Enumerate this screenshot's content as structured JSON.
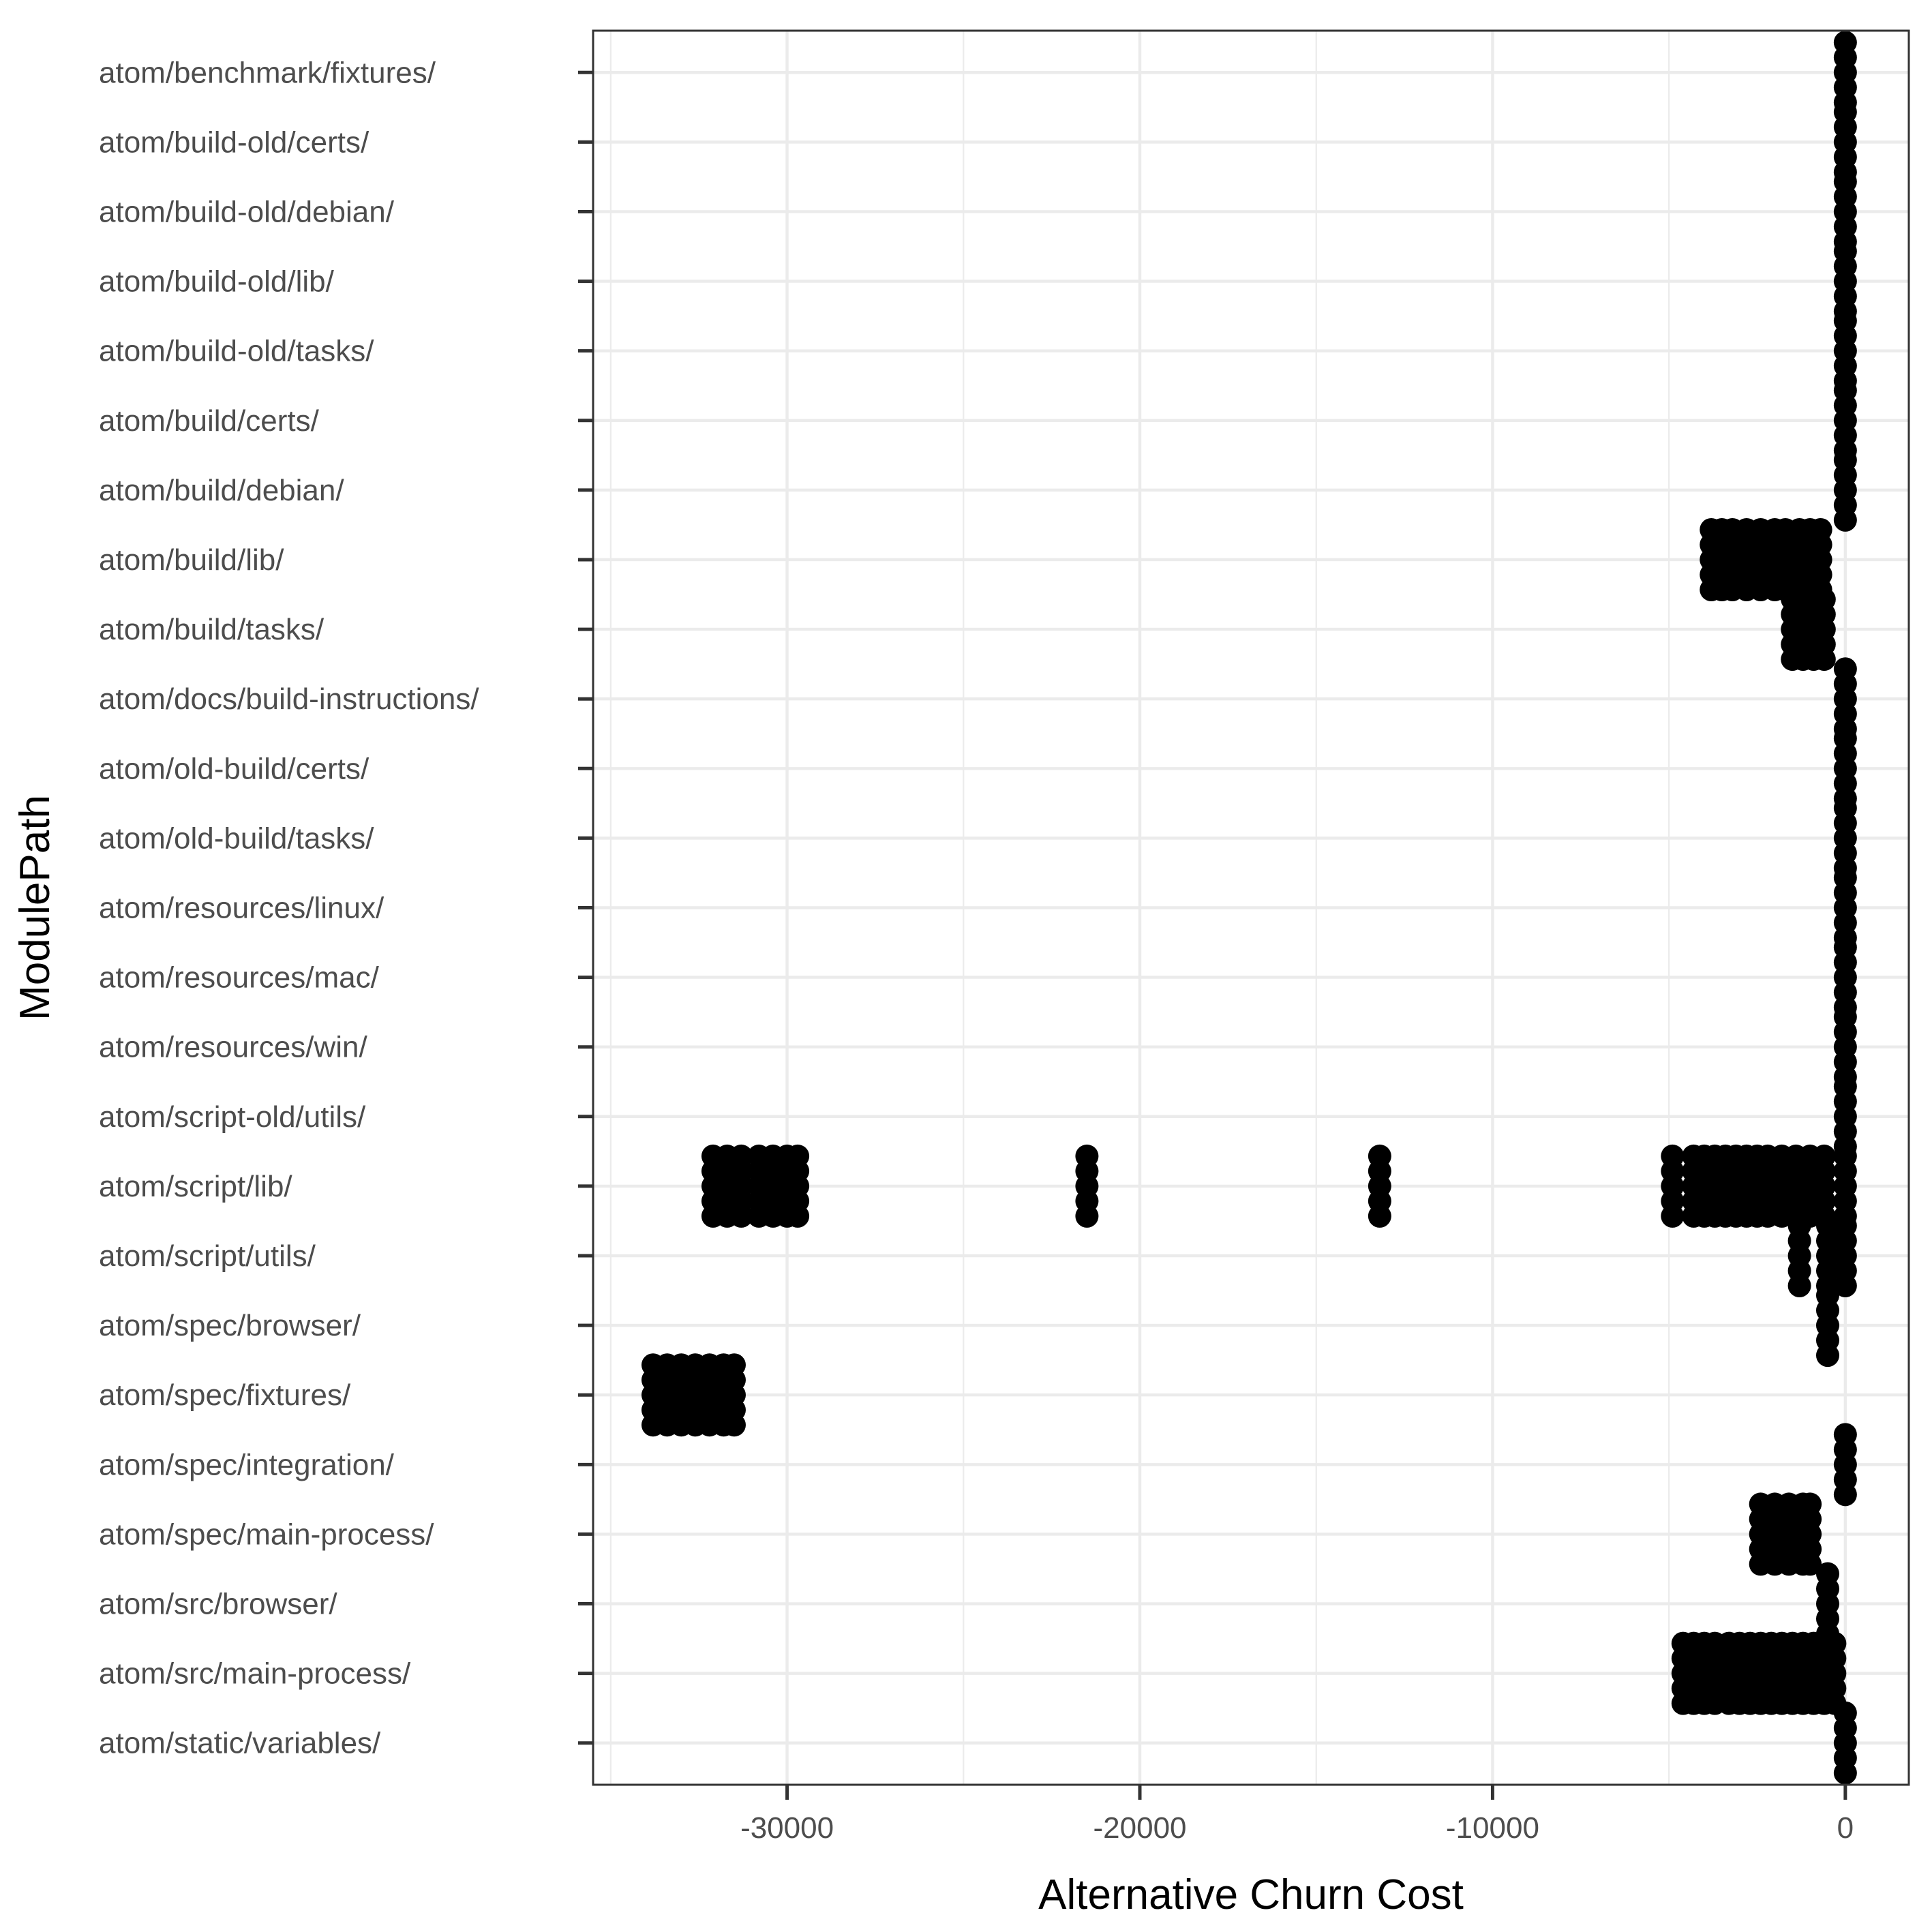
{
  "chart_data": {
    "type": "scatter",
    "xlabel": "Alternative Churn Cost",
    "ylabel": "ModulePath",
    "xlim": [
      -35500,
      1800
    ],
    "x_ticks": [
      -30000,
      -20000,
      -10000,
      0
    ],
    "x_tick_labels": [
      "-30000",
      "-20000",
      "-10000",
      "0"
    ],
    "grid": true,
    "point_color": "#000000",
    "categories": [
      "atom/benchmark/fixtures/",
      "atom/build-old/certs/",
      "atom/build-old/debian/",
      "atom/build-old/lib/",
      "atom/build-old/tasks/",
      "atom/build/certs/",
      "atom/build/debian/",
      "atom/build/lib/",
      "atom/build/tasks/",
      "atom/docs/build-instructions/",
      "atom/old-build/certs/",
      "atom/old-build/tasks/",
      "atom/resources/linux/",
      "atom/resources/mac/",
      "atom/resources/win/",
      "atom/script-old/utils/",
      "atom/script/lib/",
      "atom/script/utils/",
      "atom/spec/browser/",
      "atom/spec/fixtures/",
      "atom/spec/integration/",
      "atom/spec/main-process/",
      "atom/src/browser/",
      "atom/src/main-process/",
      "atom/static/variables/"
    ],
    "points": [
      {
        "category": "atom/benchmark/fixtures/",
        "x": [
          0
        ]
      },
      {
        "category": "atom/build-old/certs/",
        "x": [
          0
        ]
      },
      {
        "category": "atom/build-old/debian/",
        "x": [
          0
        ]
      },
      {
        "category": "atom/build-old/lib/",
        "x": [
          0
        ]
      },
      {
        "category": "atom/build-old/tasks/",
        "x": [
          0
        ]
      },
      {
        "category": "atom/build/certs/",
        "x": [
          0
        ]
      },
      {
        "category": "atom/build/debian/",
        "x": [
          0
        ]
      },
      {
        "category": "atom/build/lib/",
        "x": [
          -3800,
          -3500,
          -3200,
          -2800,
          -2400,
          -2000,
          -1700,
          -1300,
          -1000,
          -700
        ]
      },
      {
        "category": "atom/build/tasks/",
        "x": [
          -1500,
          -1200,
          -900,
          -600
        ]
      },
      {
        "category": "atom/docs/build-instructions/",
        "x": [
          0
        ]
      },
      {
        "category": "atom/old-build/certs/",
        "x": [
          0
        ]
      },
      {
        "category": "atom/old-build/tasks/",
        "x": [
          0
        ]
      },
      {
        "category": "atom/resources/linux/",
        "x": [
          0
        ]
      },
      {
        "category": "atom/resources/mac/",
        "x": [
          0
        ]
      },
      {
        "category": "atom/resources/win/",
        "x": [
          0
        ]
      },
      {
        "category": "atom/script-old/utils/",
        "x": [
          0
        ]
      },
      {
        "category": "atom/script/lib/",
        "x": [
          -32100,
          -31700,
          -31300,
          -30800,
          -30400,
          -30000,
          -29700,
          -21500,
          -13200,
          -4900,
          -4300,
          -4000,
          -3700,
          -3400,
          -3100,
          -2800,
          -2500,
          -2200,
          -1800,
          -1400,
          -1000,
          -600,
          0
        ]
      },
      {
        "category": "atom/script/utils/",
        "x": [
          -1300,
          -500,
          0
        ]
      },
      {
        "category": "atom/spec/browser/",
        "x": [
          -500
        ]
      },
      {
        "category": "atom/spec/fixtures/",
        "x": [
          -33800,
          -33400,
          -33000,
          -32600,
          -32200,
          -31800,
          -31500
        ]
      },
      {
        "category": "atom/spec/integration/",
        "x": [
          0
        ]
      },
      {
        "category": "atom/spec/main-process/",
        "x": [
          -2400,
          -2000,
          -1600,
          -1200,
          -1000
        ]
      },
      {
        "category": "atom/src/browser/",
        "x": [
          -500
        ]
      },
      {
        "category": "atom/src/main-process/",
        "x": [
          -4600,
          -4300,
          -4000,
          -3700,
          -3300,
          -3000,
          -2700,
          -2400,
          -2100,
          -1800,
          -1500,
          -1200,
          -900,
          -600,
          -300
        ]
      },
      {
        "category": "atom/static/variables/",
        "x": [
          0
        ]
      }
    ]
  }
}
